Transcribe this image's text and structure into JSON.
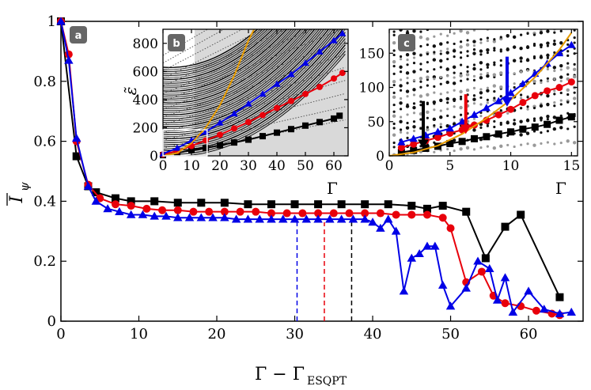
{
  "chart_data": [
    {
      "id": "a",
      "type": "line",
      "panel_label": "a",
      "xlabel": "Γ − Γ",
      "xlabel_sub": "ESQPT",
      "ylabel": "I",
      "ylabel_sub": "ψ",
      "xlim": [
        0,
        67
      ],
      "ylim": [
        0,
        1
      ],
      "xticks": [
        0,
        10,
        20,
        30,
        40,
        50,
        60
      ],
      "yticks": [
        0,
        0.2,
        0.4,
        0.6,
        0.8,
        1
      ],
      "ytick_labels": [
        "0",
        "0.2",
        "0.4",
        "0.6",
        "0.8",
        "1"
      ],
      "colors": {
        "black": "#000000",
        "red": "#e8000b",
        "blue": "#0000e6"
      },
      "series": [
        {
          "name": "black",
          "color": "#000000",
          "marker": "square",
          "x": [
            0,
            2,
            3.5,
            4.5,
            7,
            9,
            12,
            15,
            18,
            21,
            24,
            27,
            30,
            33,
            36,
            39,
            42,
            45,
            47,
            49,
            52,
            54.5,
            57,
            59,
            64
          ],
          "y": [
            1.0,
            0.55,
            0.45,
            0.43,
            0.41,
            0.4,
            0.4,
            0.395,
            0.395,
            0.395,
            0.39,
            0.39,
            0.39,
            0.39,
            0.39,
            0.39,
            0.39,
            0.385,
            0.375,
            0.385,
            0.365,
            0.21,
            0.315,
            0.355,
            0.08
          ]
        },
        {
          "name": "red",
          "color": "#e8000b",
          "marker": "circle",
          "x": [
            0,
            1,
            2,
            3.5,
            5,
            7,
            9,
            11,
            13,
            15,
            17,
            19,
            21,
            23,
            25,
            27,
            29,
            31,
            33,
            35,
            37,
            39,
            41,
            43,
            45,
            47,
            49,
            50,
            52,
            54,
            55.5,
            57,
            59,
            61,
            63,
            64
          ],
          "y": [
            1.0,
            0.89,
            0.6,
            0.455,
            0.41,
            0.39,
            0.385,
            0.375,
            0.37,
            0.37,
            0.365,
            0.365,
            0.365,
            0.365,
            0.365,
            0.36,
            0.36,
            0.36,
            0.36,
            0.36,
            0.36,
            0.36,
            0.36,
            0.355,
            0.355,
            0.355,
            0.345,
            0.31,
            0.13,
            0.165,
            0.085,
            0.06,
            0.05,
            0.035,
            0.025,
            0.02
          ]
        },
        {
          "name": "blue",
          "color": "#0000e6",
          "marker": "triangle",
          "x": [
            0,
            1,
            2,
            3.5,
            4.5,
            6,
            7.5,
            9,
            10.5,
            12,
            13.5,
            15,
            16.5,
            18,
            19.5,
            21,
            22.5,
            24,
            25.5,
            27,
            28.5,
            30,
            31.5,
            33,
            34.5,
            36,
            37.5,
            39,
            40,
            41,
            42,
            43,
            44,
            45,
            46,
            47,
            48,
            49,
            50,
            52,
            53.5,
            55,
            56,
            57,
            58,
            60,
            62,
            64,
            65.5
          ],
          "y": [
            1.0,
            0.87,
            0.61,
            0.45,
            0.4,
            0.375,
            0.365,
            0.355,
            0.355,
            0.35,
            0.35,
            0.345,
            0.345,
            0.345,
            0.345,
            0.345,
            0.34,
            0.34,
            0.34,
            0.34,
            0.34,
            0.34,
            0.34,
            0.34,
            0.34,
            0.34,
            0.34,
            0.34,
            0.33,
            0.31,
            0.34,
            0.3,
            0.1,
            0.21,
            0.225,
            0.25,
            0.25,
            0.12,
            0.05,
            0.11,
            0.2,
            0.175,
            0.07,
            0.145,
            0.03,
            0.1,
            0.04,
            0.025,
            0.03
          ]
        }
      ],
      "vlines": [
        {
          "x": 30.3,
          "color": "#0000e6",
          "top": 0.33
        },
        {
          "x": 33.8,
          "color": "#e8000b",
          "top": 0.33
        },
        {
          "x": 37.3,
          "color": "#000000",
          "top": 0.33
        }
      ]
    },
    {
      "id": "b",
      "type": "scatter",
      "panel_label": "b",
      "xlabel": "Γ",
      "ylabel": "ε̃",
      "xlim": [
        0,
        65
      ],
      "ylim": [
        0,
        900
      ],
      "xticks": [
        0,
        10,
        20,
        30,
        40,
        50,
        60
      ],
      "yticks": [
        0,
        200,
        400,
        600,
        800
      ],
      "series": [
        {
          "name": "black",
          "color": "#000000",
          "marker": "square",
          "x": [
            0,
            5,
            10,
            15,
            20,
            25,
            30,
            35,
            40,
            45,
            50,
            55,
            60,
            62
          ],
          "y": [
            5,
            20,
            40,
            55,
            75,
            95,
            115,
            140,
            165,
            190,
            215,
            240,
            265,
            285
          ]
        },
        {
          "name": "red",
          "color": "#e8000b",
          "marker": "circle",
          "x": [
            0,
            5,
            10,
            15,
            20,
            25,
            30,
            35,
            40,
            45,
            50,
            55,
            60,
            63
          ],
          "y": [
            10,
            35,
            70,
            110,
            150,
            195,
            240,
            290,
            340,
            390,
            440,
            490,
            550,
            590
          ]
        },
        {
          "name": "blue",
          "color": "#0000e6",
          "marker": "triangle",
          "x": [
            0,
            5,
            10,
            15,
            20,
            25,
            30,
            35,
            40,
            45,
            50,
            55,
            60,
            63
          ],
          "y": [
            15,
            55,
            110,
            170,
            235,
            300,
            370,
            440,
            510,
            580,
            660,
            740,
            820,
            870
          ]
        },
        {
          "name": "orange",
          "color": "#e69b00",
          "marker": "line",
          "x": [
            0,
            5,
            10,
            15,
            20,
            25,
            30,
            32
          ],
          "y": [
            0,
            20,
            90,
            200,
            360,
            570,
            820,
            900
          ]
        }
      ]
    },
    {
      "id": "c",
      "type": "scatter",
      "panel_label": "c",
      "xlabel": "Γ",
      "ylabel": "",
      "xlim": [
        0,
        15.5
      ],
      "ylim": [
        0,
        185
      ],
      "xticks": [
        0,
        5,
        10,
        15
      ],
      "yticks": [
        0,
        50,
        100,
        150
      ],
      "series": [
        {
          "name": "black",
          "color": "#000000",
          "marker": "square",
          "x": [
            1,
            2,
            3,
            4,
            5,
            6,
            7,
            8,
            9,
            10,
            11,
            12,
            13,
            14,
            15
          ],
          "y": [
            5,
            8,
            11,
            14,
            18,
            21,
            25,
            28,
            32,
            35,
            39,
            42,
            46,
            52,
            57
          ]
        },
        {
          "name": "red",
          "color": "#e8000b",
          "marker": "circle",
          "x": [
            1,
            2,
            3,
            4,
            5,
            6,
            7,
            8,
            9,
            10,
            11,
            12,
            13,
            14,
            15
          ],
          "y": [
            12,
            17,
            22,
            27,
            33,
            38,
            45,
            52,
            60,
            68,
            78,
            88,
            95,
            100,
            108
          ]
        },
        {
          "name": "blue",
          "color": "#0000e6",
          "marker": "triangle",
          "x": [
            1,
            2,
            3,
            4,
            5,
            6,
            7,
            8,
            9,
            10,
            11,
            12,
            13,
            14,
            15
          ],
          "y": [
            20,
            25,
            30,
            35,
            40,
            50,
            60,
            70,
            80,
            92,
            105,
            120,
            135,
            150,
            162
          ]
        },
        {
          "name": "orange",
          "color": "#e69b00",
          "marker": "line",
          "x": [
            0,
            2,
            4,
            6,
            8,
            10,
            12,
            14,
            15
          ],
          "y": [
            0,
            5,
            15,
            32,
            55,
            82,
            115,
            155,
            180
          ]
        }
      ],
      "arrows": [
        {
          "color": "#000000",
          "x": 2.8,
          "y_from": 80,
          "y_to": 10
        },
        {
          "color": "#e8000b",
          "x": 6.3,
          "y_from": 90,
          "y_to": 32
        },
        {
          "color": "#0000e6",
          "x": 9.7,
          "y_from": 145,
          "y_to": 72
        }
      ]
    }
  ]
}
